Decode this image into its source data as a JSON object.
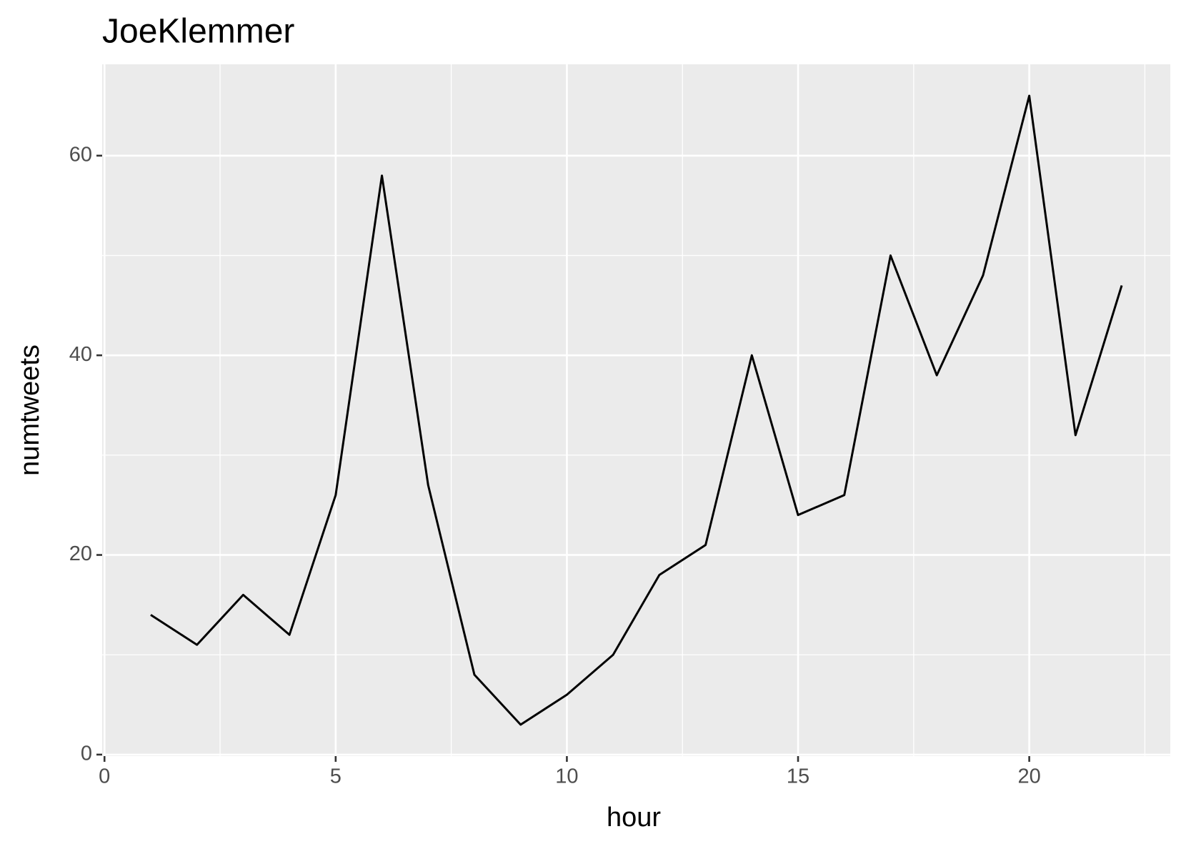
{
  "chart_data": {
    "type": "line",
    "title": "JoeKlemmer",
    "x_label": "hour",
    "y_label": "numtweets",
    "x": [
      1,
      2,
      3,
      4,
      5,
      6,
      7,
      8,
      9,
      10,
      11,
      12,
      13,
      14,
      15,
      16,
      17,
      18,
      19,
      20,
      21,
      22
    ],
    "values": [
      14,
      11,
      16,
      12,
      26,
      58,
      27,
      8,
      3,
      6,
      10,
      18,
      21,
      40,
      24,
      26,
      50,
      38,
      48,
      66,
      32,
      47
    ],
    "color": "#000000",
    "xlim": [
      -0.05,
      23.05
    ],
    "xticks": [
      0,
      5,
      10,
      15,
      20
    ],
    "ylim": [
      -0.15,
      69.15
    ],
    "yticks": [
      0,
      20,
      40,
      60
    ],
    "grid": true
  }
}
